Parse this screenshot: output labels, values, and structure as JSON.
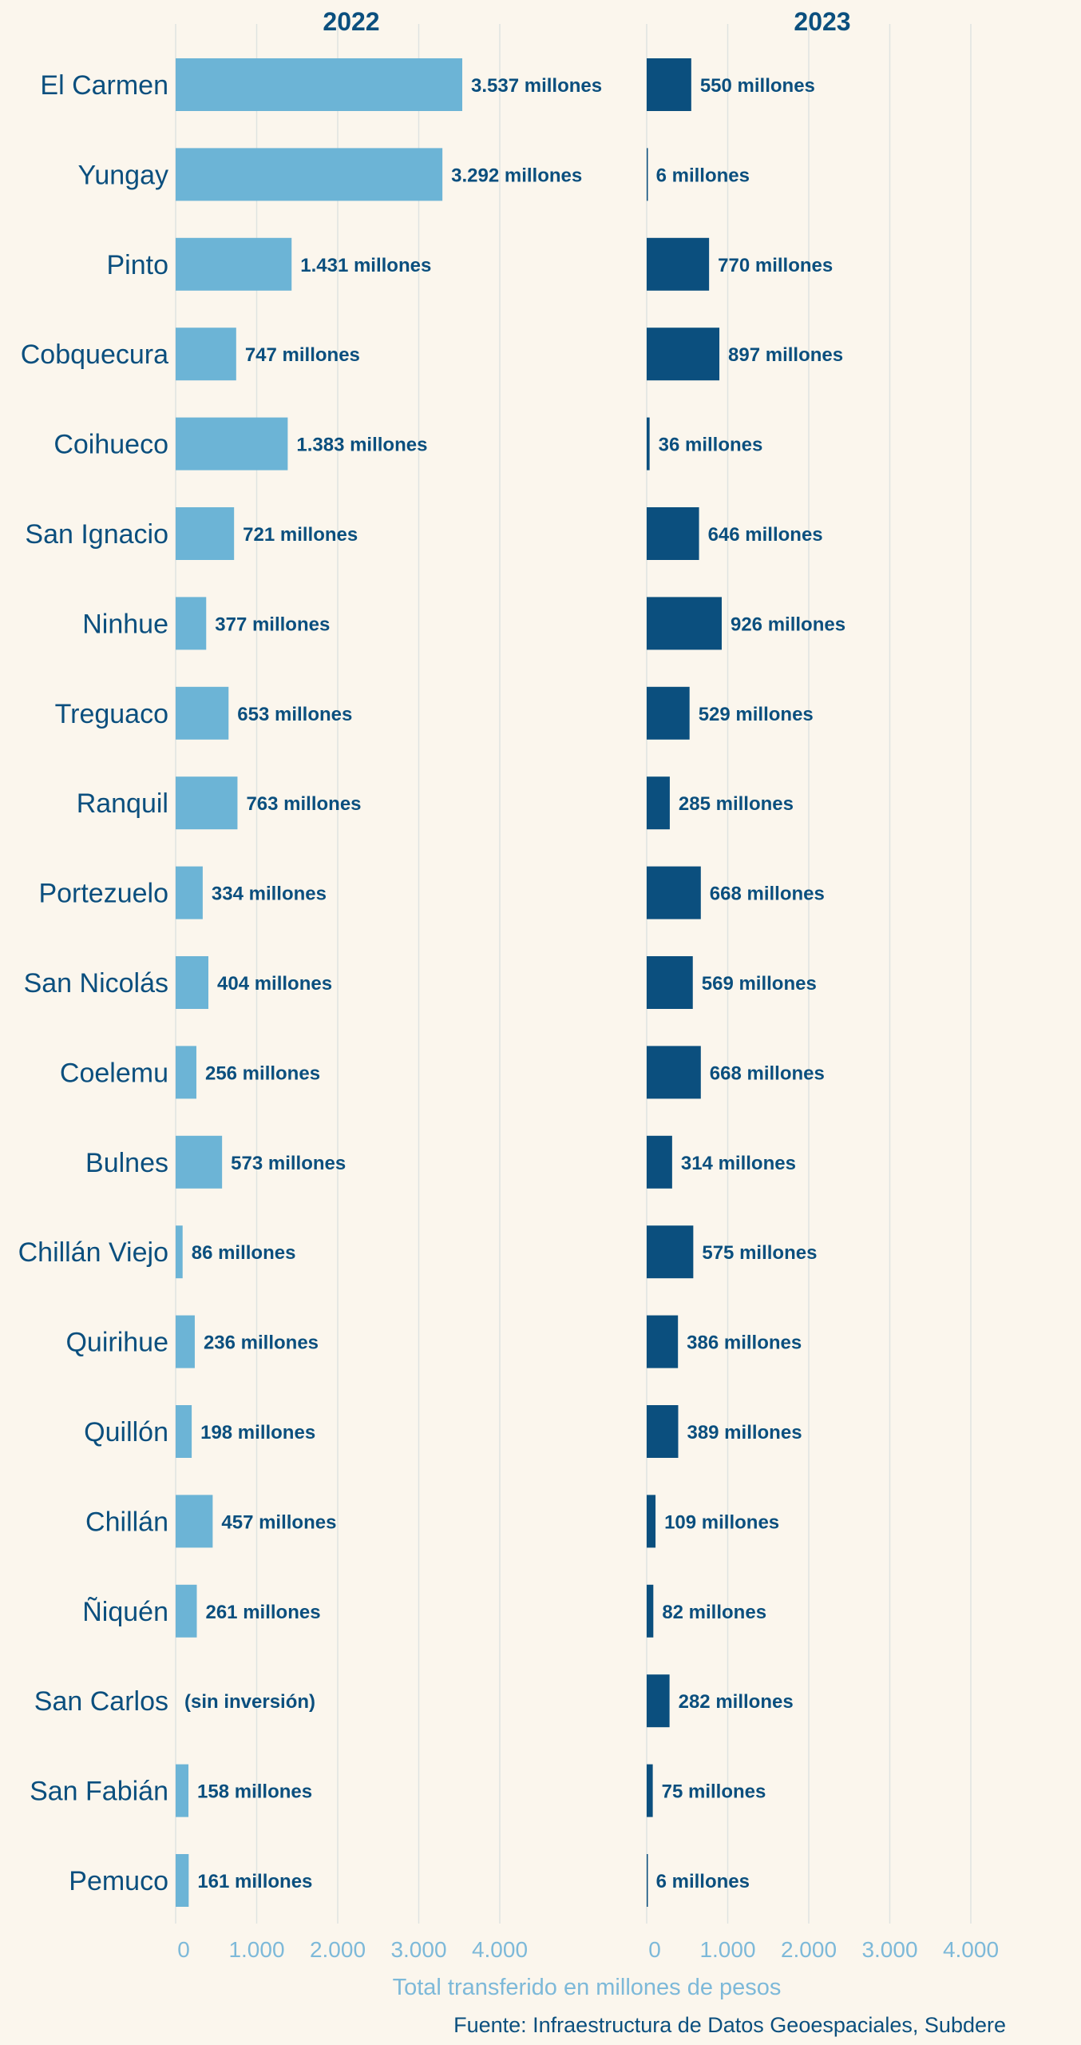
{
  "chart_data": {
    "type": "bar",
    "orientation": "horizontal",
    "xlabel": "Total transferido en millones de pesos",
    "xlim": [
      0,
      5000
    ],
    "xticks": [
      0,
      1000,
      2000,
      3000,
      4000
    ],
    "xtick_labels": [
      "0",
      "1.000",
      "2.000",
      "3.000",
      "4.000"
    ],
    "grid": true,
    "source": "Fuente: Infraestructura de Datos Geoespaciales, Subdere",
    "categories": [
      "El Carmen",
      "Yungay",
      "Pinto",
      "Cobquecura",
      "Coihueco",
      "San Ignacio",
      "Ninhue",
      "Treguaco",
      "Ranquil",
      "Portezuelo",
      "San Nicolás",
      "Coelemu",
      "Bulnes",
      "Chillán Viejo",
      "Quirihue",
      "Quillón",
      "Chillán",
      "Ñiquén",
      "San Carlos",
      "San Fabián",
      "Pemuco"
    ],
    "series": [
      {
        "name": "2022",
        "color": "#6cb4d6",
        "values": [
          3537,
          3292,
          1431,
          747,
          1383,
          721,
          377,
          653,
          763,
          334,
          404,
          256,
          573,
          86,
          236,
          198,
          457,
          261,
          0,
          158,
          161
        ],
        "labels": [
          "3.537 millones",
          "3.292 millones",
          "1.431 millones",
          "747 millones",
          "1.383 millones",
          "721 millones",
          "377 millones",
          "653 millones",
          "763 millones",
          "334 millones",
          "404 millones",
          "256 millones",
          "573 millones",
          "86 millones",
          "236 millones",
          "198 millones",
          "457 millones",
          "261 millones",
          "(sin inversión)",
          "158 millones",
          "161 millones"
        ]
      },
      {
        "name": "2023",
        "color": "#0b4f7e",
        "values": [
          550,
          6,
          770,
          897,
          36,
          646,
          926,
          529,
          285,
          668,
          569,
          668,
          314,
          575,
          386,
          389,
          109,
          82,
          282,
          75,
          6
        ],
        "labels": [
          "550 millones",
          "6 millones",
          "770 millones",
          "897 millones",
          "36 millones",
          "646 millones",
          "926 millones",
          "529 millones",
          "285 millones",
          "668 millones",
          "569 millones",
          "668 millones",
          "314 millones",
          "575 millones",
          "386 millones",
          "389 millones",
          "109 millones",
          "82 millones",
          "282 millones",
          "75 millones",
          "6 millones"
        ]
      }
    ]
  }
}
